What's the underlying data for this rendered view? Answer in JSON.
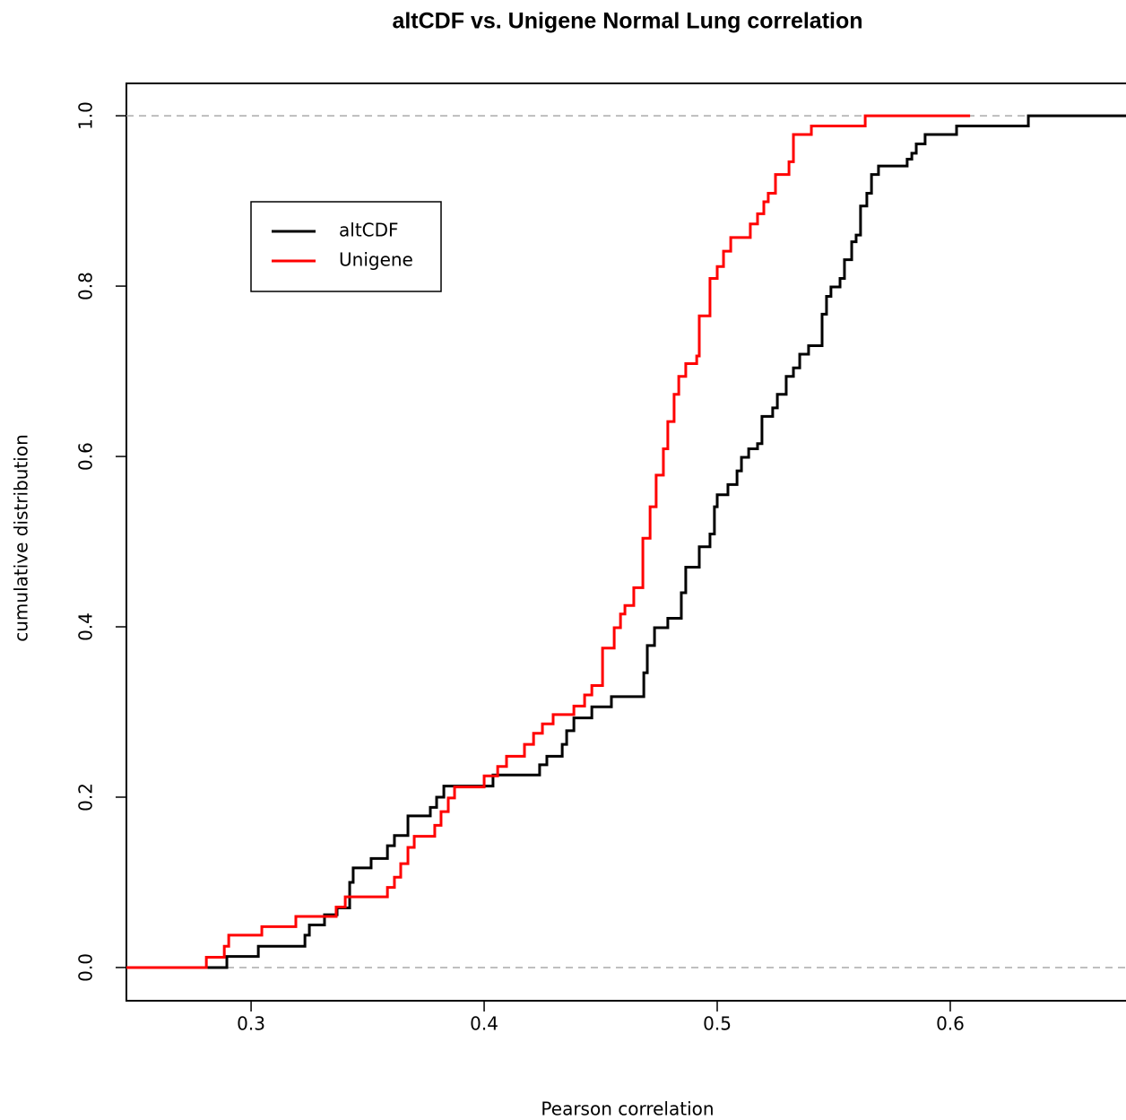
{
  "chart_data": {
    "type": "step",
    "title": "altCDF vs. Unigene Normal Lung correlation",
    "x_label": "Pearson correlation",
    "y_label": "cumulative distribution",
    "xlim": [
      0.2465,
      0.6754
    ],
    "ylim": [
      -0.039,
      1.038
    ],
    "xticks": [
      0.3,
      0.4,
      0.5,
      0.6
    ],
    "yticks": [
      {
        "value": 0,
        "label": "0.0"
      },
      0.2,
      0.4,
      0.6,
      0.8,
      {
        "value": 1,
        "label": "1.0"
      }
    ],
    "hlines": [
      0,
      1
    ],
    "legend": "top-left",
    "series": [
      {
        "name": "altCDF",
        "color": "#000000",
        "x": [
          0.2465,
          0.2896,
          0.3031,
          0.3231,
          0.325,
          0.3315,
          0.3369,
          0.3423,
          0.3438,
          0.3515,
          0.3585,
          0.3615,
          0.3673,
          0.3769,
          0.3796,
          0.3827,
          0.4038,
          0.4238,
          0.4269,
          0.4335,
          0.4354,
          0.4385,
          0.4462,
          0.4546,
          0.4685,
          0.47,
          0.4731,
          0.4788,
          0.4846,
          0.4865,
          0.4923,
          0.4969,
          0.4988,
          0.5,
          0.5046,
          0.5085,
          0.5104,
          0.5135,
          0.5173,
          0.5192,
          0.5238,
          0.5258,
          0.5296,
          0.5327,
          0.5354,
          0.5392,
          0.545,
          0.5469,
          0.5488,
          0.5527,
          0.5546,
          0.5577,
          0.5596,
          0.5615,
          0.5642,
          0.5662,
          0.5692,
          0.5815,
          0.5835,
          0.5854,
          0.5892,
          0.6027,
          0.6335,
          0.6754
        ],
        "values": [
          0,
          0.013,
          0.025,
          0.038,
          0.05,
          0.062,
          0.07,
          0.1,
          0.117,
          0.128,
          0.143,
          0.155,
          0.178,
          0.188,
          0.2,
          0.213,
          0.226,
          0.238,
          0.248,
          0.262,
          0.278,
          0.293,
          0.306,
          0.318,
          0.346,
          0.378,
          0.399,
          0.41,
          0.44,
          0.47,
          0.494,
          0.509,
          0.541,
          0.555,
          0.567,
          0.583,
          0.599,
          0.609,
          0.615,
          0.647,
          0.657,
          0.673,
          0.694,
          0.704,
          0.72,
          0.73,
          0.767,
          0.788,
          0.799,
          0.809,
          0.831,
          0.852,
          0.86,
          0.894,
          0.909,
          0.931,
          0.941,
          0.949,
          0.956,
          0.967,
          0.978,
          0.988,
          1.0,
          1.0
        ]
      },
      {
        "name": "Unigene",
        "color": "#ff0000",
        "x": [
          0.2465,
          0.2808,
          0.2885,
          0.2904,
          0.3046,
          0.3192,
          0.3365,
          0.3404,
          0.3585,
          0.3615,
          0.3642,
          0.3673,
          0.37,
          0.3788,
          0.3815,
          0.3846,
          0.3873,
          0.4,
          0.4058,
          0.4096,
          0.4173,
          0.4212,
          0.425,
          0.4296,
          0.4385,
          0.4431,
          0.4462,
          0.4508,
          0.4558,
          0.4585,
          0.4604,
          0.4642,
          0.4681,
          0.4712,
          0.4738,
          0.4769,
          0.4788,
          0.4815,
          0.4835,
          0.4865,
          0.4912,
          0.4923,
          0.4969,
          0.5,
          0.5027,
          0.5058,
          0.5142,
          0.5173,
          0.52,
          0.5219,
          0.525,
          0.5308,
          0.5327,
          0.5404,
          0.5635,
          0.6085
        ],
        "values": [
          0,
          0.012,
          0.025,
          0.038,
          0.048,
          0.06,
          0.071,
          0.083,
          0.094,
          0.106,
          0.122,
          0.141,
          0.154,
          0.167,
          0.183,
          0.199,
          0.212,
          0.225,
          0.236,
          0.248,
          0.262,
          0.275,
          0.286,
          0.297,
          0.307,
          0.32,
          0.331,
          0.375,
          0.399,
          0.415,
          0.425,
          0.446,
          0.504,
          0.541,
          0.578,
          0.609,
          0.641,
          0.673,
          0.694,
          0.709,
          0.718,
          0.765,
          0.809,
          0.823,
          0.841,
          0.857,
          0.873,
          0.885,
          0.899,
          0.909,
          0.931,
          0.946,
          0.978,
          0.988,
          1.0,
          1.0
        ]
      }
    ]
  }
}
